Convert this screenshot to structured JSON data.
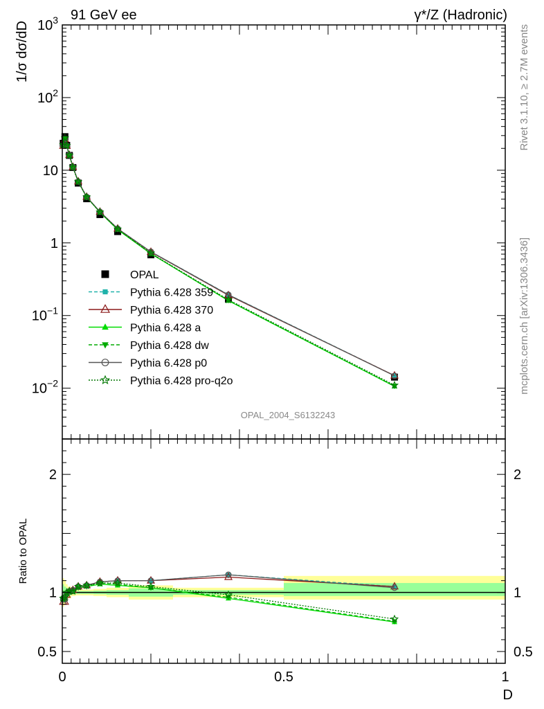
{
  "header": {
    "left": "91 GeV ee",
    "right": "γ*/Z (Hadronic)"
  },
  "side_text": {
    "upper": "Rivet 3.1.10, ≥ 2.7M events",
    "lower": "mcplots.cern.ch [arXiv:1306.3436]"
  },
  "analysis_id": "OPAL_2004_S6132243",
  "chart_data": [
    {
      "type": "line",
      "panel": "main",
      "ylabel": "1/σ dσ/dD",
      "yscale": "log",
      "ylim": [
        0.002,
        1000
      ],
      "y_ticks": [
        {
          "value": 1000,
          "base": "10",
          "exp": "3"
        },
        {
          "value": 100,
          "base": "10",
          "exp": "2"
        },
        {
          "value": 10,
          "base": "10",
          "exp": ""
        },
        {
          "value": 1,
          "base": "1",
          "exp": ""
        },
        {
          "value": 0.1,
          "base": "10",
          "exp": "−1"
        },
        {
          "value": 0.01,
          "base": "10",
          "exp": "−2"
        }
      ],
      "xlim": [
        0,
        1
      ],
      "legend_position": "lower-left",
      "series": [
        {
          "name": "OPAL",
          "color": "#000000",
          "marker": "square",
          "x": [
            0.002,
            0.006,
            0.01,
            0.016,
            0.024,
            0.036,
            0.055,
            0.085,
            0.125,
            0.2,
            0.375,
            0.75
          ],
          "y": [
            23.5,
            29.0,
            22.0,
            16.0,
            10.9,
            6.65,
            4.05,
            2.45,
            1.43,
            0.685,
            0.168,
            0.0142
          ]
        },
        {
          "name": "Pythia 6.428 359",
          "color": "#20b2aa",
          "marker": "small-square",
          "dash": "5,3",
          "x": [
            0.002,
            0.006,
            0.01,
            0.016,
            0.024,
            0.036,
            0.055,
            0.085,
            0.125,
            0.2,
            0.375,
            0.75
          ],
          "y": [
            22.1,
            27.3,
            21.8,
            16.2,
            11.1,
            7.0,
            4.3,
            2.68,
            1.57,
            0.755,
            0.194,
            0.0149
          ]
        },
        {
          "name": "Pythia 6.428 370",
          "color": "#8b1a1a",
          "marker": "open-triangle",
          "x": [
            0.002,
            0.006,
            0.01,
            0.016,
            0.024,
            0.036,
            0.055,
            0.085,
            0.125,
            0.2,
            0.375,
            0.75
          ],
          "y": [
            21.6,
            26.7,
            21.6,
            16.2,
            11.1,
            7.0,
            4.3,
            2.68,
            1.57,
            0.75,
            0.19,
            0.0149
          ]
        },
        {
          "name": "Pythia 6.428 a",
          "color": "#00dd00",
          "marker": "filled-triangle",
          "x": [
            0.002,
            0.006,
            0.01,
            0.016,
            0.024,
            0.036,
            0.055,
            0.085,
            0.125,
            0.2,
            0.375,
            0.75
          ],
          "y": [
            22.1,
            27.5,
            21.7,
            16.0,
            11.0,
            6.9,
            4.25,
            2.63,
            1.52,
            0.71,
            0.16,
            0.0106
          ]
        },
        {
          "name": "Pythia 6.428 dw",
          "color": "#00aa00",
          "marker": "filled-triangle-down",
          "dash": "5,3",
          "x": [
            0.002,
            0.006,
            0.01,
            0.016,
            0.024,
            0.036,
            0.055,
            0.085,
            0.125,
            0.2,
            0.375,
            0.75
          ],
          "y": [
            22.3,
            27.6,
            21.8,
            16.1,
            11.0,
            6.92,
            4.26,
            2.64,
            1.53,
            0.715,
            0.162,
            0.0107
          ]
        },
        {
          "name": "Pythia 6.428 p0",
          "color": "#555555",
          "marker": "open-circle",
          "x": [
            0.002,
            0.006,
            0.01,
            0.016,
            0.024,
            0.036,
            0.055,
            0.085,
            0.125,
            0.2,
            0.375,
            0.75
          ],
          "y": [
            22.0,
            27.2,
            21.7,
            16.2,
            11.1,
            7.0,
            4.3,
            2.68,
            1.57,
            0.755,
            0.193,
            0.0148
          ]
        },
        {
          "name": "Pythia 6.428 pro-q2o",
          "color": "#007700",
          "marker": "open-star",
          "dash": "2,2",
          "x": [
            0.002,
            0.006,
            0.01,
            0.016,
            0.024,
            0.036,
            0.055,
            0.085,
            0.125,
            0.2,
            0.375,
            0.75
          ],
          "y": [
            22.3,
            27.7,
            21.9,
            16.1,
            11.0,
            6.95,
            4.28,
            2.66,
            1.55,
            0.72,
            0.165,
            0.011
          ]
        }
      ]
    },
    {
      "type": "line",
      "panel": "ratio",
      "ylabel": "Ratio to OPAL",
      "xlabel": "D",
      "ylim": [
        0.4,
        2.3
      ],
      "xlim": [
        0,
        1
      ],
      "y_ticks": [
        "0.5",
        "1",
        "2"
      ],
      "y_tick_values": [
        0.5,
        1,
        2
      ],
      "x_ticks": [
        "0",
        "0.5",
        "1"
      ],
      "x_tick_values": [
        0,
        0.5,
        1
      ],
      "bands": [
        {
          "x0": 0.0,
          "x1": 0.004,
          "lo_yellow": 0.88,
          "hi_yellow": 1.12,
          "lo_green": 0.93,
          "hi_green": 1.07
        },
        {
          "x0": 0.004,
          "x1": 0.008,
          "lo_yellow": 0.9,
          "hi_yellow": 1.1,
          "lo_green": 0.95,
          "hi_green": 1.05
        },
        {
          "x0": 0.008,
          "x1": 0.012,
          "lo_yellow": 0.93,
          "hi_yellow": 1.07,
          "lo_green": 0.96,
          "hi_green": 1.04
        },
        {
          "x0": 0.012,
          "x1": 0.02,
          "lo_yellow": 0.95,
          "hi_yellow": 1.05,
          "lo_green": 0.975,
          "hi_green": 1.025
        },
        {
          "x0": 0.02,
          "x1": 0.03,
          "lo_yellow": 0.97,
          "hi_yellow": 1.03,
          "lo_green": 0.985,
          "hi_green": 1.015
        },
        {
          "x0": 0.03,
          "x1": 0.04,
          "lo_yellow": 0.975,
          "hi_yellow": 1.025,
          "lo_green": 0.988,
          "hi_green": 1.012
        },
        {
          "x0": 0.04,
          "x1": 0.07,
          "lo_yellow": 0.975,
          "hi_yellow": 1.025,
          "lo_green": 0.988,
          "hi_green": 1.012
        },
        {
          "x0": 0.07,
          "x1": 0.1,
          "lo_yellow": 0.97,
          "hi_yellow": 1.03,
          "lo_green": 0.985,
          "hi_green": 1.015
        },
        {
          "x0": 0.1,
          "x1": 0.15,
          "lo_yellow": 0.96,
          "hi_yellow": 1.04,
          "lo_green": 0.98,
          "hi_green": 1.02
        },
        {
          "x0": 0.15,
          "x1": 0.25,
          "lo_yellow": 0.94,
          "hi_yellow": 1.06,
          "lo_green": 0.965,
          "hi_green": 1.035
        },
        {
          "x0": 0.25,
          "x1": 0.5,
          "lo_yellow": 0.96,
          "hi_yellow": 1.04,
          "lo_green": 0.98,
          "hi_green": 1.02
        },
        {
          "x0": 0.5,
          "x1": 1.0,
          "lo_yellow": 0.94,
          "hi_yellow": 1.14,
          "lo_green": 0.97,
          "hi_green": 1.08
        }
      ],
      "series": [
        {
          "name": "Pythia 6.428 359",
          "color": "#20b2aa",
          "marker": "small-square",
          "dash": "5,3",
          "x": [
            0.002,
            0.006,
            0.01,
            0.016,
            0.024,
            0.036,
            0.055,
            0.085,
            0.125,
            0.2,
            0.375,
            0.75
          ],
          "y": [
            0.94,
            0.94,
            0.99,
            1.01,
            1.02,
            1.05,
            1.06,
            1.09,
            1.1,
            1.1,
            1.15,
            1.05
          ]
        },
        {
          "name": "Pythia 6.428 370",
          "color": "#8b1a1a",
          "marker": "open-triangle",
          "x": [
            0.002,
            0.006,
            0.01,
            0.016,
            0.024,
            0.036,
            0.055,
            0.085,
            0.125,
            0.2,
            0.375,
            0.75
          ],
          "y": [
            0.92,
            0.92,
            0.98,
            1.01,
            1.02,
            1.05,
            1.06,
            1.09,
            1.1,
            1.1,
            1.13,
            1.05
          ]
        },
        {
          "name": "Pythia 6.428 a",
          "color": "#00dd00",
          "marker": "filled-triangle",
          "x": [
            0.002,
            0.006,
            0.01,
            0.016,
            0.024,
            0.036,
            0.055,
            0.085,
            0.125,
            0.2,
            0.375,
            0.75
          ],
          "y": [
            0.94,
            0.95,
            0.99,
            1.0,
            1.01,
            1.04,
            1.05,
            1.07,
            1.06,
            1.04,
            0.95,
            0.75
          ]
        },
        {
          "name": "Pythia 6.428 dw",
          "color": "#00aa00",
          "marker": "filled-triangle-down",
          "dash": "5,3",
          "x": [
            0.002,
            0.006,
            0.01,
            0.016,
            0.024,
            0.036,
            0.055,
            0.085,
            0.125,
            0.2,
            0.375,
            0.75
          ],
          "y": [
            0.95,
            0.95,
            0.99,
            1.01,
            1.01,
            1.04,
            1.05,
            1.08,
            1.07,
            1.04,
            0.96,
            0.755
          ]
        },
        {
          "name": "Pythia 6.428 p0",
          "color": "#555555",
          "marker": "open-circle",
          "x": [
            0.002,
            0.006,
            0.01,
            0.016,
            0.024,
            0.036,
            0.055,
            0.085,
            0.125,
            0.2,
            0.375,
            0.75
          ],
          "y": [
            0.94,
            0.94,
            0.99,
            1.01,
            1.02,
            1.05,
            1.06,
            1.09,
            1.1,
            1.1,
            1.15,
            1.04
          ]
        },
        {
          "name": "Pythia 6.428 pro-q2o",
          "color": "#007700",
          "marker": "open-star",
          "dash": "2,2",
          "x": [
            0.002,
            0.006,
            0.01,
            0.016,
            0.024,
            0.036,
            0.055,
            0.085,
            0.125,
            0.2,
            0.375,
            0.75
          ],
          "y": [
            0.95,
            0.96,
            1.0,
            1.01,
            1.01,
            1.05,
            1.06,
            1.08,
            1.08,
            1.05,
            0.98,
            0.775
          ]
        }
      ]
    }
  ]
}
